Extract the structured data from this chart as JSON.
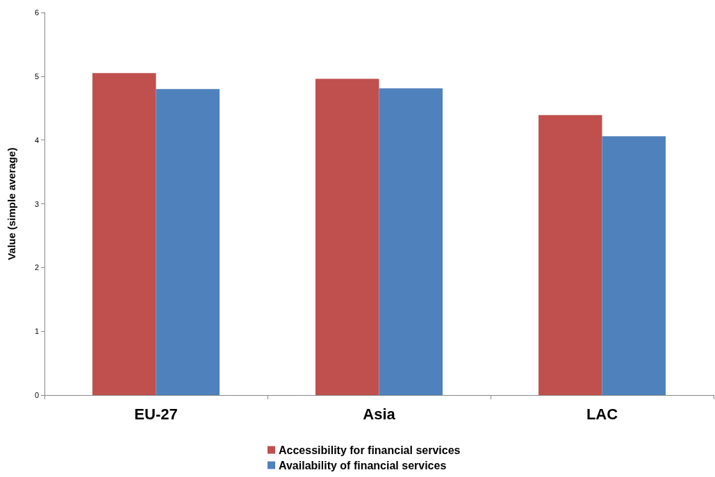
{
  "chart_data": {
    "type": "bar",
    "ylabel": "Value (simple average)",
    "categories": [
      "EU-27",
      "Asia",
      "LAC"
    ],
    "series": [
      {
        "name": "Accessibility for financial services",
        "color": "#c0504d",
        "values": [
          5.05,
          4.96,
          4.39
        ]
      },
      {
        "name": "Availability of financial services",
        "color": "#4f81bd",
        "values": [
          4.8,
          4.81,
          4.06
        ]
      }
    ],
    "ylim": [
      0,
      6
    ],
    "yticks": [
      0,
      1,
      2,
      3,
      4,
      5,
      6
    ],
    "grid": false,
    "legend": "bottom"
  }
}
